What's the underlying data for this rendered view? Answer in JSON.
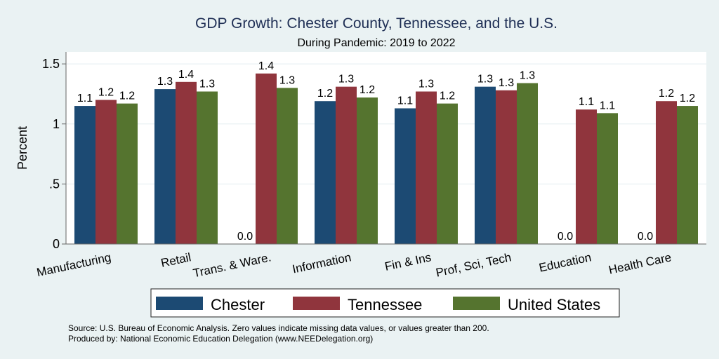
{
  "chart_data": {
    "type": "bar",
    "title": "GDP Growth: Chester County, Tennessee, and the U.S.",
    "subtitle": "During Pandemic: 2019 to 2022",
    "xlabel": "",
    "ylabel": "Percent",
    "ylim": [
      0,
      1.6
    ],
    "yticks": [
      0,
      0.5,
      1,
      1.5
    ],
    "ytick_labels": [
      "0",
      ".5",
      "1",
      "1.5"
    ],
    "grid": true,
    "legend_position": "bottom",
    "categories": [
      "Manufacturing",
      "Retail",
      "Trans. & Ware.",
      "Information",
      "Fin & Ins",
      "Prof, Sci, Tech",
      "Education",
      "Health Care"
    ],
    "series": [
      {
        "name": "Chester",
        "color": "#1c4a73",
        "values": [
          1.15,
          1.29,
          0.0,
          1.19,
          1.13,
          1.31,
          0.0,
          0.0
        ],
        "labels": [
          "1.1",
          "1.3",
          "0.0",
          "1.2",
          "1.1",
          "1.3",
          "0.0",
          "0.0"
        ]
      },
      {
        "name": "Tennessee",
        "color": "#90353d",
        "values": [
          1.2,
          1.35,
          1.42,
          1.31,
          1.27,
          1.28,
          1.12,
          1.19
        ],
        "labels": [
          "1.2",
          "1.4",
          "1.4",
          "1.3",
          "1.3",
          "1.3",
          "1.1",
          "1.2"
        ]
      },
      {
        "name": "United States",
        "color": "#55742f",
        "values": [
          1.17,
          1.27,
          1.3,
          1.22,
          1.17,
          1.34,
          1.09,
          1.15
        ],
        "labels": [
          "1.2",
          "1.3",
          "1.3",
          "1.2",
          "1.2",
          "1.3",
          "1.1",
          "1.2"
        ]
      }
    ],
    "notes": [
      "Source: U.S. Bureau of Economic Analysis. Zero values indicate missing data values, or values greater than 200.",
      "Produced by: National Economic Education Delegation (www.NEEDelegation.org)"
    ]
  }
}
